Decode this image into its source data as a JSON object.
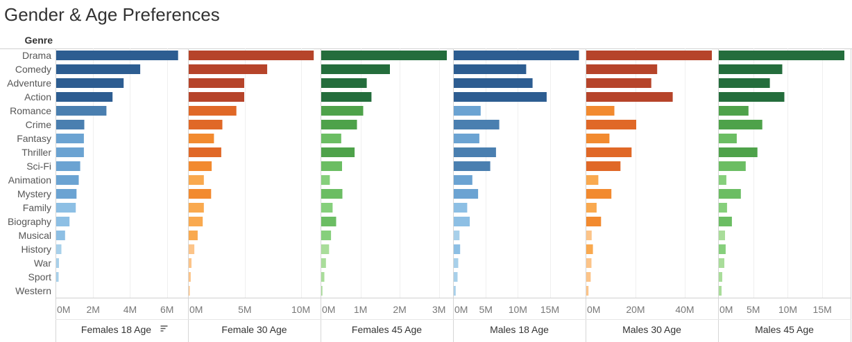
{
  "title": "Gender & Age Preferences",
  "row_header": "Genre",
  "colors": {
    "blue": [
      "#a8d0ea",
      "#8dbfe4",
      "#6ba3d2",
      "#4a7fb0",
      "#2d5d91"
    ],
    "orange": [
      "#fcc489",
      "#f9a94f",
      "#f28a2f",
      "#e06827",
      "#b6442a"
    ],
    "green": [
      "#a9dd9a",
      "#86cf7c",
      "#6bbd63",
      "#4ea24a",
      "#246d3c"
    ]
  },
  "chart_data": {
    "type": "bar",
    "orientation": "horizontal",
    "categories": [
      "Drama",
      "Comedy",
      "Adventure",
      "Action",
      "Romance",
      "Crime",
      "Fantasy",
      "Thriller",
      "Sci-Fi",
      "Animation",
      "Mystery",
      "Family",
      "Biography",
      "Musical",
      "History",
      "War",
      "Sport",
      "Western"
    ],
    "panels": [
      {
        "name": "Females 18 Age",
        "sorted": true,
        "palette": "blue",
        "xlim": [
          0,
          6800000
        ],
        "ticks": [
          0,
          2000000,
          4000000,
          6000000
        ],
        "tick_labels": [
          "0M",
          "2M",
          "4M",
          "6M"
        ],
        "values": [
          6600000,
          4550000,
          3650000,
          3050000,
          2720000,
          1520000,
          1500000,
          1500000,
          1300000,
          1220000,
          1100000,
          1060000,
          720000,
          480000,
          280000,
          150000,
          130000,
          0
        ]
      },
      {
        "name": "Female 30 Age",
        "sorted": false,
        "palette": "orange",
        "xlim": [
          0,
          11200000
        ],
        "ticks": [
          0,
          5000000,
          10000000
        ],
        "tick_labels": [
          "0M",
          "5M",
          "10M"
        ],
        "values": [
          11150000,
          7000000,
          4950000,
          4950000,
          4250000,
          3000000,
          2250000,
          2900000,
          2050000,
          1350000,
          2000000,
          1350000,
          1250000,
          800000,
          500000,
          250000,
          180000,
          60000
        ]
      },
      {
        "name": "Females 45 Age",
        "sorted": false,
        "palette": "green",
        "xlim": [
          0,
          3200000
        ],
        "ticks": [
          0,
          1000000,
          2000000,
          3000000
        ],
        "tick_labels": [
          "0M",
          "1M",
          "2M",
          "3M"
        ],
        "values": [
          3200000,
          1750000,
          1160000,
          1280000,
          1070000,
          910000,
          510000,
          850000,
          530000,
          220000,
          540000,
          290000,
          380000,
          250000,
          200000,
          120000,
          80000,
          30000
        ]
      },
      {
        "name": "Males 18 Age",
        "sorted": false,
        "palette": "blue",
        "xlim": [
          0,
          19600000
        ],
        "ticks": [
          0,
          5000000,
          10000000,
          15000000
        ],
        "tick_labels": [
          "0M",
          "5M",
          "10M",
          "15M"
        ],
        "values": [
          19550000,
          11300000,
          12300000,
          14500000,
          4200000,
          7100000,
          4000000,
          6600000,
          5700000,
          2900000,
          3800000,
          2100000,
          2500000,
          900000,
          1000000,
          700000,
          600000,
          300000
        ]
      },
      {
        "name": "Males 30 Age",
        "sorted": false,
        "palette": "orange",
        "xlim": [
          0,
          51000000
        ],
        "ticks": [
          0,
          20000000,
          40000000
        ],
        "tick_labels": [
          "0M",
          "20M",
          "40M"
        ],
        "values": [
          51000000,
          28800000,
          26400000,
          35100000,
          11400000,
          20300000,
          9400000,
          18400000,
          13900000,
          4900000,
          10200000,
          4200000,
          6000000,
          2200000,
          2700000,
          2100000,
          1800000,
          900000
        ]
      },
      {
        "name": "Males 45 Age",
        "sorted": false,
        "palette": "green",
        "xlim": [
          0,
          18200000
        ],
        "ticks": [
          0,
          5000000,
          10000000,
          15000000
        ],
        "tick_labels": [
          "0M",
          "5M",
          "10M",
          "15M"
        ],
        "values": [
          18200000,
          9200000,
          7400000,
          9500000,
          4300000,
          6300000,
          2600000,
          5600000,
          3900000,
          1100000,
          3200000,
          1200000,
          1900000,
          900000,
          1000000,
          800000,
          500000,
          400000
        ]
      }
    ]
  }
}
